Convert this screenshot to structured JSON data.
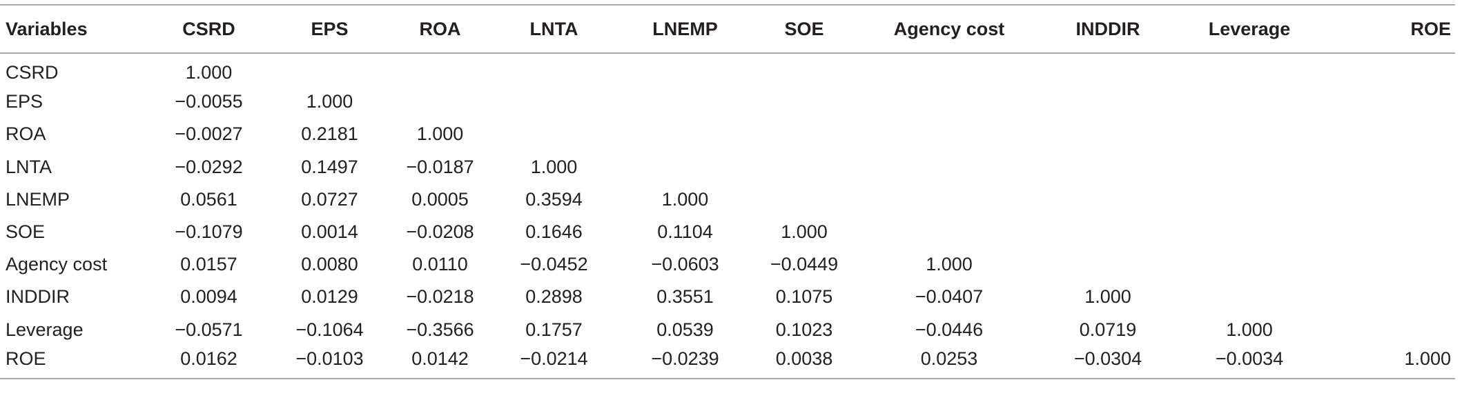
{
  "table": {
    "headers": [
      "Variables",
      "CSRD",
      "EPS",
      "ROA",
      "LNTA",
      "LNEMP",
      "SOE",
      "Agency cost",
      "INDDIR",
      "Leverage",
      "ROE"
    ],
    "rows": [
      [
        "CSRD",
        "1.000",
        "",
        "",
        "",
        "",
        "",
        "",
        "",
        "",
        ""
      ],
      [
        "EPS",
        "−0.0055",
        "1.000",
        "",
        "",
        "",
        "",
        "",
        "",
        "",
        ""
      ],
      [
        "ROA",
        "−0.0027",
        "0.2181",
        "1.000",
        "",
        "",
        "",
        "",
        "",
        "",
        ""
      ],
      [
        "LNTA",
        "−0.0292",
        "0.1497",
        "−0.0187",
        "1.000",
        "",
        "",
        "",
        "",
        "",
        ""
      ],
      [
        "LNEMP",
        "0.0561",
        "0.0727",
        "0.0005",
        "0.3594",
        "1.000",
        "",
        "",
        "",
        "",
        ""
      ],
      [
        "SOE",
        "−0.1079",
        "0.0014",
        "−0.0208",
        "0.1646",
        "0.1104",
        "1.000",
        "",
        "",
        "",
        ""
      ],
      [
        "Agency cost",
        "0.0157",
        "0.0080",
        "0.0110",
        "−0.0452",
        "−0.0603",
        "−0.0449",
        "1.000",
        "",
        "",
        ""
      ],
      [
        "INDDIR",
        "0.0094",
        "0.0129",
        "−0.0218",
        "0.2898",
        "0.3551",
        "0.1075",
        "−0.0407",
        "1.000",
        "",
        ""
      ],
      [
        "Leverage",
        "−0.0571",
        "−0.1064",
        "−0.3566",
        "0.1757",
        "0.0539",
        "0.1023",
        "−0.0446",
        "0.0719",
        "1.000",
        ""
      ],
      [
        "ROE",
        "0.0162",
        "−0.0103",
        "0.0142",
        "−0.0214",
        "−0.0239",
        "0.0038",
        "0.0253",
        "−0.0304",
        "−0.0034",
        "1.000"
      ]
    ]
  }
}
